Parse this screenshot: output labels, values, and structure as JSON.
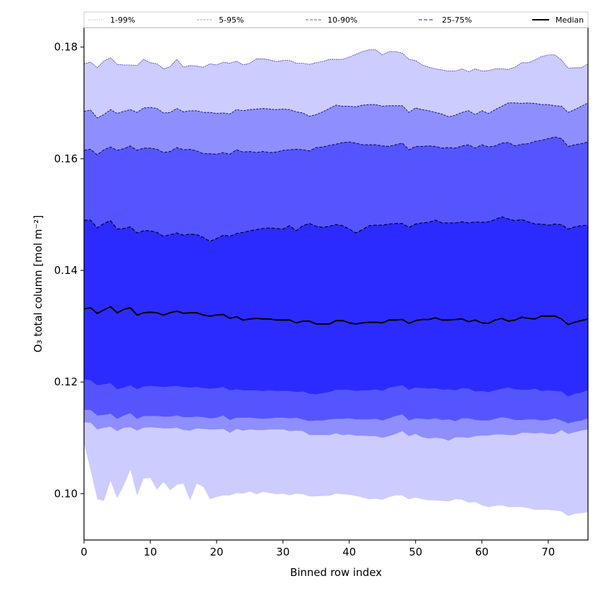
{
  "chart_data": {
    "type": "area",
    "title": "",
    "xlabel": "Binned row index",
    "ylabel": "O₃ total column [mol m⁻²]",
    "xlim": [
      0,
      76
    ],
    "ylim": [
      0.0917,
      0.1835
    ],
    "xticks": [
      0,
      10,
      20,
      30,
      40,
      50,
      60,
      70
    ],
    "xtick_labels": [
      "0",
      "10",
      "20",
      "30",
      "40",
      "50",
      "60",
      "70"
    ],
    "yticks": [
      0.1,
      0.12,
      0.14,
      0.16,
      0.18
    ],
    "ytick_labels": [
      "0.10",
      "0.12",
      "0.14",
      "0.16",
      "0.18"
    ],
    "grid": false,
    "legend_placement": "top (above axes, single row)",
    "legend": [
      {
        "label": "1-99%",
        "style": "dotted",
        "color": "#c8c8f8"
      },
      {
        "label": "5-95%",
        "style": "dashed",
        "color": "#9a9aee"
      },
      {
        "label": "10-90%",
        "style": "dashed",
        "color": "#7a7ae8"
      },
      {
        "label": "25-75%",
        "style": "dashed",
        "color": "#6060ee"
      },
      {
        "label": "Median",
        "style": "solid",
        "color": "#000000"
      }
    ],
    "colors": {
      "band_1_99": "#ccccff",
      "band_5_95": "#8e8eff",
      "band_10_90": "#5555ff",
      "band_25_75": "#2b2bff",
      "median": "#000000",
      "edge_1_99": "#3a3acc",
      "edge_5_95": "#1a1a88",
      "edge_10_90": "#101060",
      "edge_25_75": "#000033"
    },
    "x": [
      0,
      1,
      2,
      3,
      4,
      5,
      6,
      7,
      8,
      9,
      10,
      11,
      12,
      13,
      14,
      15,
      16,
      17,
      18,
      19,
      20,
      21,
      22,
      23,
      24,
      25,
      26,
      27,
      28,
      29,
      30,
      31,
      32,
      33,
      34,
      35,
      36,
      37,
      38,
      39,
      40,
      41,
      42,
      43,
      44,
      45,
      46,
      47,
      48,
      49,
      50,
      51,
      52,
      53,
      54,
      55,
      56,
      57,
      58,
      59,
      60,
      61,
      62,
      63,
      64,
      65,
      66,
      67,
      68,
      69,
      70,
      71,
      72,
      73,
      74,
      75,
      76
    ],
    "series": [
      {
        "name": "p99",
        "values": [
          0.177,
          0.1773,
          0.1763,
          0.1775,
          0.1781,
          0.1769,
          0.1768,
          0.1768,
          0.1767,
          0.1778,
          0.1772,
          0.177,
          0.1761,
          0.1765,
          0.1778,
          0.1764,
          0.1767,
          0.1766,
          0.1764,
          0.177,
          0.1768,
          0.1773,
          0.1771,
          0.1775,
          0.1768,
          0.1771,
          0.1779,
          0.1779,
          0.1777,
          0.1774,
          0.1776,
          0.1776,
          0.1771,
          0.1771,
          0.1769,
          0.1772,
          0.1774,
          0.1778,
          0.1778,
          0.1778,
          0.1782,
          0.1787,
          0.1792,
          0.1795,
          0.1795,
          0.1786,
          0.1792,
          0.1792,
          0.1789,
          0.1778,
          0.1776,
          0.1768,
          0.1764,
          0.1761,
          0.1759,
          0.1757,
          0.1757,
          0.1761,
          0.1756,
          0.1761,
          0.1757,
          0.1758,
          0.1761,
          0.1761,
          0.176,
          0.1764,
          0.1772,
          0.1772,
          0.1777,
          0.1783,
          0.1786,
          0.1786,
          0.1777,
          0.1762,
          0.1763,
          0.1763,
          0.177
        ]
      },
      {
        "name": "p95",
        "values": [
          0.1685,
          0.1687,
          0.1673,
          0.1679,
          0.1688,
          0.1681,
          0.1685,
          0.1688,
          0.1683,
          0.1691,
          0.1692,
          0.169,
          0.1682,
          0.1683,
          0.169,
          0.1684,
          0.1686,
          0.1686,
          0.1683,
          0.1683,
          0.1681,
          0.1682,
          0.168,
          0.1688,
          0.1686,
          0.1688,
          0.1689,
          0.169,
          0.1689,
          0.1688,
          0.1689,
          0.1688,
          0.1684,
          0.1682,
          0.1676,
          0.1679,
          0.1684,
          0.169,
          0.1696,
          0.1694,
          0.1694,
          0.1693,
          0.1696,
          0.1697,
          0.1697,
          0.1694,
          0.1695,
          0.1695,
          0.1695,
          0.1683,
          0.1691,
          0.1688,
          0.1686,
          0.1683,
          0.168,
          0.1675,
          0.1678,
          0.1683,
          0.1686,
          0.1679,
          0.1686,
          0.1681,
          0.1688,
          0.1694,
          0.17,
          0.17,
          0.1699,
          0.17,
          0.1699,
          0.1697,
          0.1697,
          0.1695,
          0.1694,
          0.1683,
          0.1688,
          0.1694,
          0.17
        ]
      },
      {
        "name": "p90",
        "values": [
          0.1615,
          0.1617,
          0.1607,
          0.1616,
          0.1621,
          0.1615,
          0.1618,
          0.1623,
          0.1615,
          0.1619,
          0.1619,
          0.1617,
          0.1611,
          0.1613,
          0.162,
          0.1616,
          0.1617,
          0.1614,
          0.1609,
          0.1609,
          0.1608,
          0.1611,
          0.1608,
          0.1616,
          0.1612,
          0.1613,
          0.1611,
          0.1613,
          0.1611,
          0.1612,
          0.1615,
          0.1616,
          0.1617,
          0.1616,
          0.1614,
          0.162,
          0.1621,
          0.1624,
          0.1626,
          0.1629,
          0.163,
          0.1628,
          0.1625,
          0.1625,
          0.1625,
          0.1623,
          0.1622,
          0.1625,
          0.1628,
          0.1616,
          0.1622,
          0.1622,
          0.1623,
          0.1622,
          0.1619,
          0.162,
          0.1619,
          0.1623,
          0.1625,
          0.1619,
          0.1625,
          0.1621,
          0.1623,
          0.1628,
          0.1629,
          0.1623,
          0.1626,
          0.1627,
          0.1631,
          0.1633,
          0.1636,
          0.1639,
          0.1636,
          0.1622,
          0.1625,
          0.1627,
          0.163
        ]
      },
      {
        "name": "p75",
        "values": [
          0.149,
          0.149,
          0.1476,
          0.1484,
          0.1489,
          0.1474,
          0.1475,
          0.1478,
          0.1467,
          0.1471,
          0.1471,
          0.1468,
          0.1461,
          0.1464,
          0.1467,
          0.1463,
          0.1465,
          0.1464,
          0.1459,
          0.1452,
          0.1457,
          0.1463,
          0.1461,
          0.1466,
          0.1468,
          0.1471,
          0.1473,
          0.1475,
          0.1476,
          0.1475,
          0.1474,
          0.148,
          0.1471,
          0.148,
          0.1484,
          0.1479,
          0.1477,
          0.1479,
          0.1482,
          0.148,
          0.1474,
          0.1467,
          0.1473,
          0.148,
          0.1481,
          0.1481,
          0.1483,
          0.1484,
          0.1484,
          0.1477,
          0.1483,
          0.1485,
          0.1486,
          0.149,
          0.1485,
          0.1485,
          0.1485,
          0.1487,
          0.1485,
          0.1487,
          0.1486,
          0.1487,
          0.1491,
          0.1496,
          0.1492,
          0.1489,
          0.1491,
          0.1487,
          0.1483,
          0.1483,
          0.1481,
          0.1483,
          0.1482,
          0.1474,
          0.1478,
          0.148,
          0.1481
        ]
      },
      {
        "name": "median",
        "values": [
          0.1331,
          0.1333,
          0.1323,
          0.1329,
          0.1335,
          0.1324,
          0.133,
          0.1333,
          0.132,
          0.1324,
          0.1325,
          0.1324,
          0.132,
          0.1324,
          0.1327,
          0.1323,
          0.1324,
          0.1324,
          0.132,
          0.1318,
          0.132,
          0.1321,
          0.1314,
          0.1317,
          0.1311,
          0.1313,
          0.1314,
          0.1313,
          0.1313,
          0.1311,
          0.1311,
          0.1311,
          0.1306,
          0.1309,
          0.1309,
          0.1304,
          0.1304,
          0.1304,
          0.131,
          0.131,
          0.1306,
          0.1304,
          0.1306,
          0.1307,
          0.1307,
          0.1306,
          0.1311,
          0.1311,
          0.1312,
          0.1305,
          0.131,
          0.1312,
          0.1312,
          0.1315,
          0.1311,
          0.1311,
          0.1312,
          0.1313,
          0.1308,
          0.1311,
          0.1306,
          0.1305,
          0.1311,
          0.1314,
          0.1309,
          0.1311,
          0.1316,
          0.1314,
          0.1313,
          0.1318,
          0.1318,
          0.1318,
          0.1313,
          0.1303,
          0.1307,
          0.131,
          0.1313
        ]
      },
      {
        "name": "p25",
        "values": [
          0.1205,
          0.1203,
          0.1194,
          0.1196,
          0.1198,
          0.1187,
          0.119,
          0.1194,
          0.1187,
          0.1192,
          0.1193,
          0.1192,
          0.1191,
          0.1192,
          0.1193,
          0.1191,
          0.119,
          0.1191,
          0.1189,
          0.1188,
          0.1189,
          0.1191,
          0.1185,
          0.1187,
          0.1185,
          0.1185,
          0.1185,
          0.1184,
          0.1185,
          0.1184,
          0.1184,
          0.1184,
          0.1182,
          0.1183,
          0.1179,
          0.1178,
          0.118,
          0.1182,
          0.1186,
          0.1186,
          0.1186,
          0.1184,
          0.1185,
          0.1185,
          0.1187,
          0.1184,
          0.119,
          0.1192,
          0.1194,
          0.1186,
          0.119,
          0.1189,
          0.1188,
          0.1189,
          0.1186,
          0.1187,
          0.1185,
          0.1189,
          0.1188,
          0.1183,
          0.1184,
          0.1182,
          0.1185,
          0.1188,
          0.119,
          0.1187,
          0.1186,
          0.1186,
          0.1188,
          0.1184,
          0.1185,
          0.1184,
          0.1183,
          0.1174,
          0.1179,
          0.1181,
          0.1186
        ]
      },
      {
        "name": "p10",
        "values": [
          0.115,
          0.115,
          0.114,
          0.1141,
          0.1143,
          0.1134,
          0.114,
          0.1144,
          0.1134,
          0.1139,
          0.1139,
          0.1139,
          0.1138,
          0.1138,
          0.114,
          0.1137,
          0.1137,
          0.1138,
          0.1137,
          0.1135,
          0.1136,
          0.114,
          0.1132,
          0.1136,
          0.1136,
          0.1136,
          0.1135,
          0.1134,
          0.1135,
          0.1136,
          0.1136,
          0.1135,
          0.1136,
          0.1133,
          0.113,
          0.1131,
          0.1131,
          0.1133,
          0.1134,
          0.1134,
          0.1135,
          0.1133,
          0.1133,
          0.1133,
          0.1134,
          0.1131,
          0.1135,
          0.1139,
          0.1142,
          0.1131,
          0.1135,
          0.1134,
          0.1133,
          0.1135,
          0.1132,
          0.1133,
          0.113,
          0.1135,
          0.1135,
          0.1132,
          0.1131,
          0.1131,
          0.1134,
          0.1137,
          0.1135,
          0.1132,
          0.1132,
          0.1133,
          0.1133,
          0.1131,
          0.1132,
          0.1135,
          0.1131,
          0.1126,
          0.1129,
          0.1131,
          0.1135
        ]
      },
      {
        "name": "p5",
        "values": [
          0.1128,
          0.1127,
          0.1115,
          0.1118,
          0.112,
          0.1112,
          0.1118,
          0.1119,
          0.1113,
          0.1118,
          0.1119,
          0.1118,
          0.1117,
          0.1117,
          0.1118,
          0.1114,
          0.1113,
          0.1117,
          0.1116,
          0.1115,
          0.1115,
          0.1116,
          0.1109,
          0.1116,
          0.1113,
          0.1115,
          0.1114,
          0.1114,
          0.1115,
          0.1115,
          0.1115,
          0.1112,
          0.1113,
          0.1112,
          0.1105,
          0.1105,
          0.1105,
          0.1105,
          0.1108,
          0.1105,
          0.1106,
          0.1104,
          0.1104,
          0.1103,
          0.1103,
          0.11,
          0.1103,
          0.1107,
          0.1112,
          0.1103,
          0.1107,
          0.1101,
          0.1099,
          0.11,
          0.1099,
          0.1095,
          0.1101,
          0.1101,
          0.11,
          0.1103,
          0.1104,
          0.1104,
          0.1106,
          0.1106,
          0.1105,
          0.1105,
          0.1109,
          0.1109,
          0.1108,
          0.1109,
          0.1107,
          0.1107,
          0.1114,
          0.1107,
          0.111,
          0.1113,
          0.1115
        ]
      },
      {
        "name": "p1",
        "values": [
          0.109,
          0.1042,
          0.099,
          0.0987,
          0.1023,
          0.0992,
          0.1015,
          0.1043,
          0.0997,
          0.1027,
          0.1028,
          0.1007,
          0.1021,
          0.1006,
          0.1016,
          0.1018,
          0.0988,
          0.1018,
          0.1012,
          0.099,
          0.0994,
          0.0997,
          0.0997,
          0.1001,
          0.1,
          0.1004,
          0.0999,
          0.1003,
          0.1001,
          0.0999,
          0.1,
          0.0997,
          0.1,
          0.0999,
          0.0995,
          0.0995,
          0.0996,
          0.0996,
          0.1,
          0.0999,
          0.0998,
          0.0996,
          0.0993,
          0.099,
          0.0991,
          0.0989,
          0.0994,
          0.0997,
          0.0997,
          0.099,
          0.0993,
          0.099,
          0.0988,
          0.0988,
          0.0987,
          0.0986,
          0.099,
          0.0989,
          0.0984,
          0.0985,
          0.0979,
          0.0976,
          0.0978,
          0.0979,
          0.0976,
          0.0976,
          0.0976,
          0.0974,
          0.0971,
          0.0971,
          0.0971,
          0.097,
          0.0968,
          0.096,
          0.0964,
          0.0965,
          0.0967
        ]
      }
    ]
  }
}
